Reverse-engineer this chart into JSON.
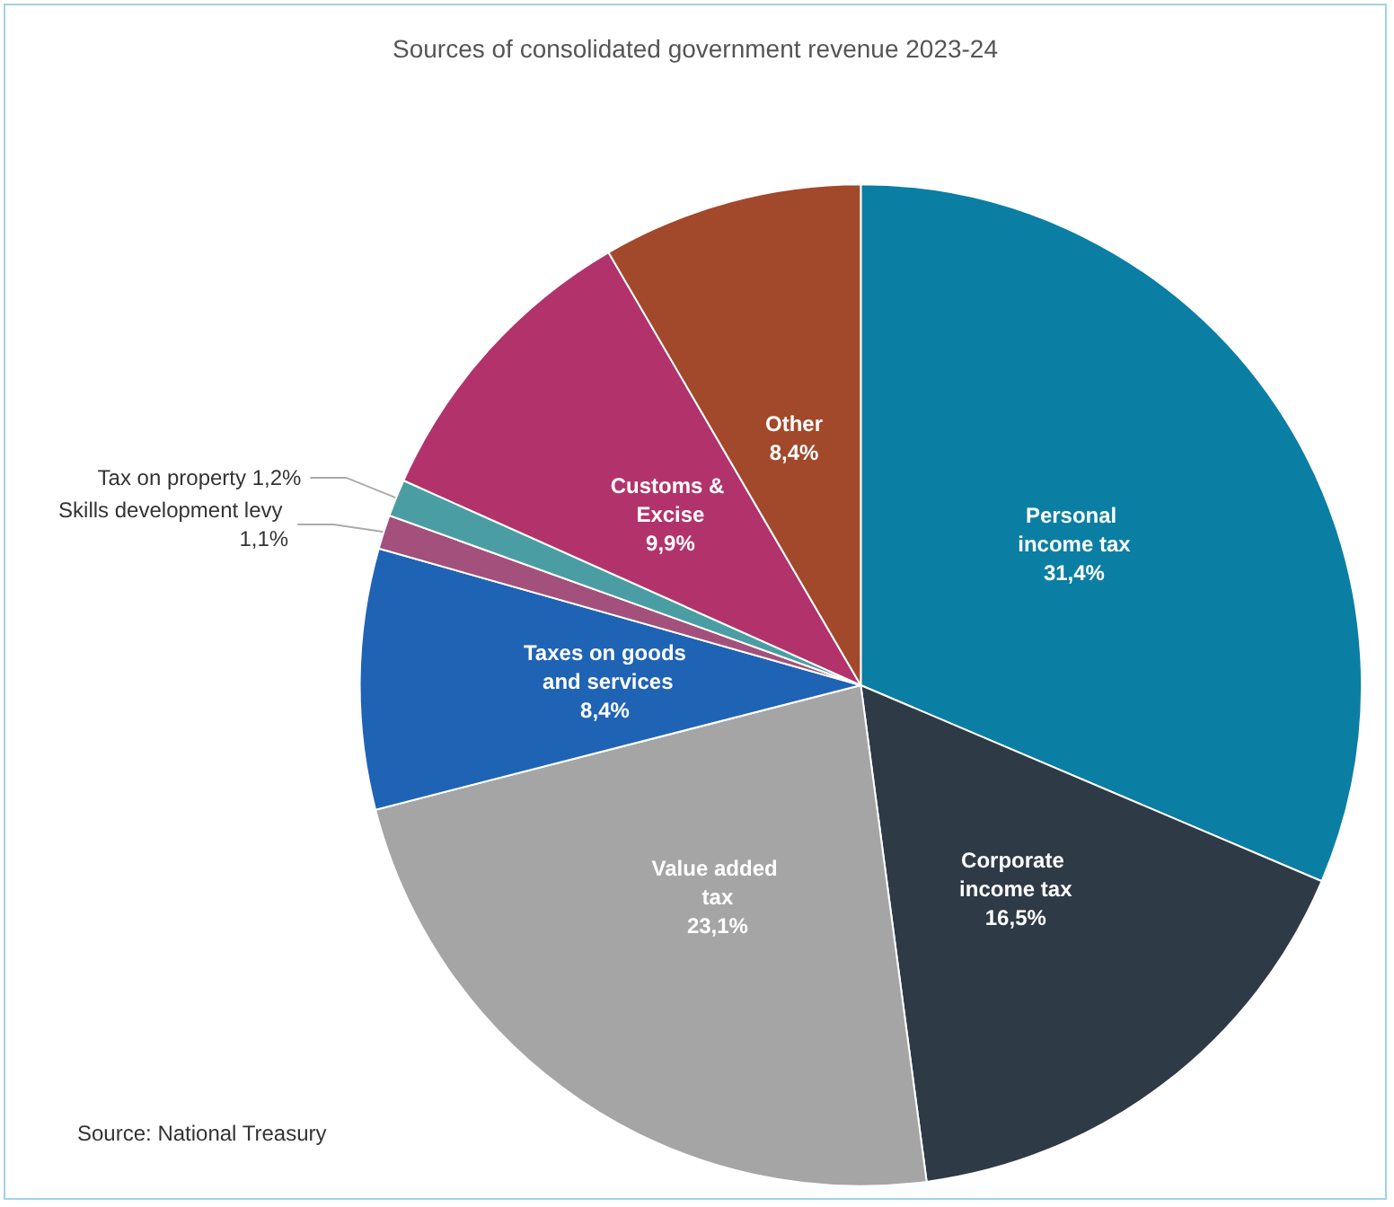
{
  "chart_data": {
    "type": "pie",
    "title": "Sources of consolidated government revenue 2023-24",
    "categories": [
      "Personal income tax",
      "Corporate income tax",
      "Value added tax",
      "Taxes on goods and services",
      "Skills development levy",
      "Tax on property",
      "Customs & Excise",
      "Other"
    ],
    "values": [
      31.4,
      16.5,
      23.1,
      8.4,
      1.1,
      1.2,
      9.9,
      8.4
    ],
    "value_labels": [
      "31,4%",
      "16,5%",
      "23,1%",
      "8,4%",
      "1,1%",
      "1,2%",
      "9,9%",
      "8,4%"
    ],
    "colors": [
      "#0b7ea3",
      "#2e3a46",
      "#a5a5a5",
      "#1f63b5",
      "#a3507c",
      "#4a9ea3",
      "#b2336c",
      "#a2482b"
    ],
    "annotations": [
      "Source: National Treasury"
    ],
    "legend": false
  }
}
